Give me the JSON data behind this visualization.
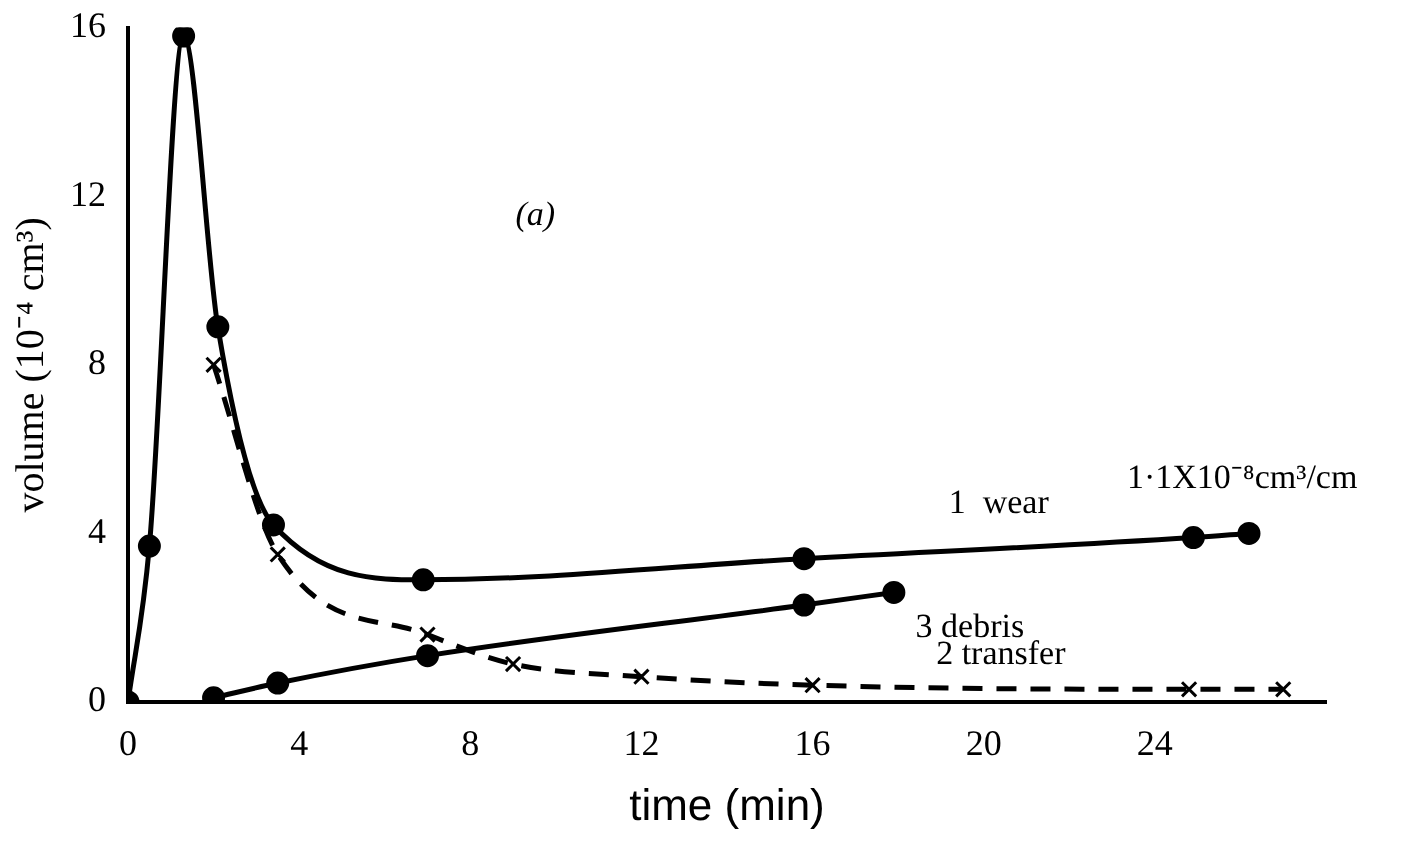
{
  "chart_data": {
    "type": "line",
    "xlabel": "time (min)",
    "ylabel": "volume (10⁻⁴ cm³)",
    "xlim": [
      0,
      28
    ],
    "ylim": [
      0,
      16
    ],
    "xticks": [
      0,
      4,
      8,
      12,
      16,
      20,
      24
    ],
    "yticks": [
      0,
      4,
      8,
      12,
      16
    ],
    "grid": false,
    "legend": false,
    "series": [
      {
        "name": "1  wear",
        "color": "#000000",
        "marker": "circle",
        "line_style": "solid",
        "x": [
          0,
          0.5,
          1.3,
          2.1,
          3.4,
          6.9,
          15.8,
          24.9,
          26.2
        ],
        "values": [
          0,
          3.7,
          15.8,
          8.9,
          4.2,
          2.9,
          3.4,
          3.9,
          4.0
        ]
      },
      {
        "name": "2 transfer",
        "color": "#000000",
        "marker": "cross",
        "line_style": "dashed",
        "x": [
          2.0,
          3.5,
          7.0,
          9,
          12,
          16,
          24.8,
          27
        ],
        "values": [
          8.0,
          3.5,
          1.6,
          0.9,
          0.6,
          0.4,
          0.3,
          0.3
        ]
      },
      {
        "name": "3 debris",
        "color": "#000000",
        "marker": "circle",
        "line_style": "solid",
        "x": [
          2.0,
          3.5,
          7.0,
          15.8,
          17.9
        ],
        "values": [
          0.1,
          0.45,
          1.1,
          2.3,
          2.6
        ]
      }
    ],
    "annotations": [
      "(a)",
      "1·1X10⁻⁸cm³/cm"
    ]
  }
}
